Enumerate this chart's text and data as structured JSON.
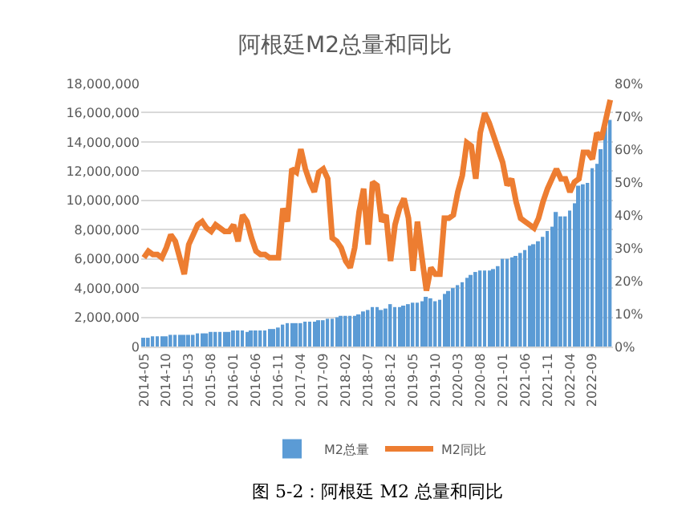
{
  "chart_data": {
    "type": "bar",
    "title": "阿根廷M2总量和同比",
    "categories": [
      "2014-05",
      null,
      null,
      null,
      null,
      "2014-10",
      null,
      null,
      null,
      null,
      "2015-03",
      null,
      null,
      null,
      null,
      "2015-08",
      null,
      null,
      null,
      null,
      "2016-01",
      null,
      null,
      null,
      null,
      "2016-06",
      null,
      null,
      null,
      null,
      "2016-11",
      null,
      null,
      null,
      null,
      "2017-04",
      null,
      null,
      null,
      null,
      "2017-09",
      null,
      null,
      null,
      null,
      "2018-02",
      null,
      null,
      null,
      null,
      "2018-07",
      null,
      null,
      null,
      null,
      "2018-12",
      null,
      null,
      null,
      null,
      "2019-05",
      null,
      null,
      null,
      null,
      "2019-10",
      null,
      null,
      null,
      null,
      "2020-03",
      null,
      null,
      null,
      null,
      "2020-08",
      null,
      null,
      null,
      null,
      "2021-01",
      null,
      null,
      null,
      null,
      "2021-06",
      null,
      null,
      null,
      null,
      "2021-11",
      null,
      null,
      null,
      null,
      "2022-04",
      null,
      null,
      null,
      null,
      "2022-09",
      null,
      null,
      null,
      null
    ],
    "series": [
      {
        "name": "M2总量",
        "color": "#5b9bd5",
        "values": [
          600000,
          600000,
          700000,
          700000,
          700000,
          700000,
          800000,
          800000,
          800000,
          800000,
          800000,
          800000,
          900000,
          900000,
          900000,
          1000000,
          1000000,
          1000000,
          1000000,
          1000000,
          1100000,
          1100000,
          1100000,
          1000000,
          1100000,
          1100000,
          1100000,
          1100000,
          1200000,
          1200000,
          1300000,
          1500000,
          1600000,
          1600000,
          1600000,
          1600000,
          1700000,
          1700000,
          1700000,
          1800000,
          1800000,
          1900000,
          1900000,
          2000000,
          2100000,
          2100000,
          2100000,
          2100000,
          2200000,
          2400000,
          2500000,
          2700000,
          2700000,
          2500000,
          2600000,
          2900000,
          2700000,
          2700000,
          2800000,
          2900000,
          3000000,
          3000000,
          3100000,
          3400000,
          3300000,
          3100000,
          3200000,
          3600000,
          3800000,
          4000000,
          4200000,
          4400000,
          4700000,
          4900000,
          5100000,
          5200000,
          5200000,
          5200000,
          5300000,
          5500000,
          6000000,
          6000000,
          6100000,
          6200000,
          6400000,
          6600000,
          6900000,
          7000000,
          7200000,
          7500000,
          7900000,
          8200000,
          9200000,
          8900000,
          8900000,
          9300000,
          9800000,
          11000000,
          11100000,
          11200000,
          12200000,
          12500000,
          13500000,
          15000000,
          15500000
        ]
      },
      {
        "name": "M2同比",
        "type": "line",
        "axis": "y2",
        "color": "#ed7d31",
        "values": [
          27,
          29,
          28,
          28,
          27,
          30,
          34,
          32,
          27,
          22,
          31,
          34,
          37,
          38,
          36,
          35,
          37,
          36,
          35,
          35,
          37,
          32,
          40,
          38,
          33,
          29,
          28,
          28,
          27,
          27,
          27,
          42,
          38,
          54,
          53,
          60,
          54,
          50,
          47,
          53,
          54,
          51,
          33,
          32,
          30,
          26,
          24,
          30,
          41,
          48,
          31,
          50,
          49,
          38,
          40,
          26,
          37,
          42,
          45,
          39,
          23,
          38,
          27,
          17,
          24,
          22,
          22,
          39,
          39,
          40,
          47,
          52,
          62,
          61,
          51,
          65,
          71,
          68,
          64,
          60,
          56,
          49,
          51,
          44,
          39,
          38,
          37,
          36,
          39,
          44,
          48,
          51,
          54,
          51,
          51,
          47,
          50,
          51,
          59,
          59,
          57,
          65,
          63,
          69,
          75
        ]
      }
    ],
    "ylim": [
      0,
      18000000
    ],
    "yticks": [
      0,
      {
        "value": 2000000,
        "label": "2,000,000"
      },
      {
        "value": 4000000,
        "label": "4,000,000"
      },
      {
        "value": 6000000,
        "label": "6,000,000"
      },
      {
        "value": 8000000,
        "label": "8,000,000"
      },
      {
        "value": 10000000,
        "label": "10,000,000"
      },
      {
        "value": 12000000,
        "label": "12,000,000"
      },
      {
        "value": 14000000,
        "label": "14,000,000"
      },
      {
        "value": 16000000,
        "label": "16,000,000"
      },
      {
        "value": 18000000,
        "label": "18,000,000"
      }
    ],
    "y2lim": [
      0,
      80
    ],
    "y2ticks": [
      {
        "value": 0,
        "label": "0%"
      },
      {
        "value": 10,
        "label": "10%"
      },
      {
        "value": 20,
        "label": "20%"
      },
      {
        "value": 30,
        "label": "30%"
      },
      {
        "value": 40,
        "label": "40%"
      },
      {
        "value": 50,
        "label": "50%"
      },
      {
        "value": 60,
        "label": "60%"
      },
      {
        "value": 70,
        "label": "70%"
      },
      {
        "value": 80,
        "label": "80%"
      }
    ],
    "grid": "y",
    "legend": "bottom",
    "annotations": [
      "图 5-2：阿根廷 M2 总量和同比"
    ]
  }
}
